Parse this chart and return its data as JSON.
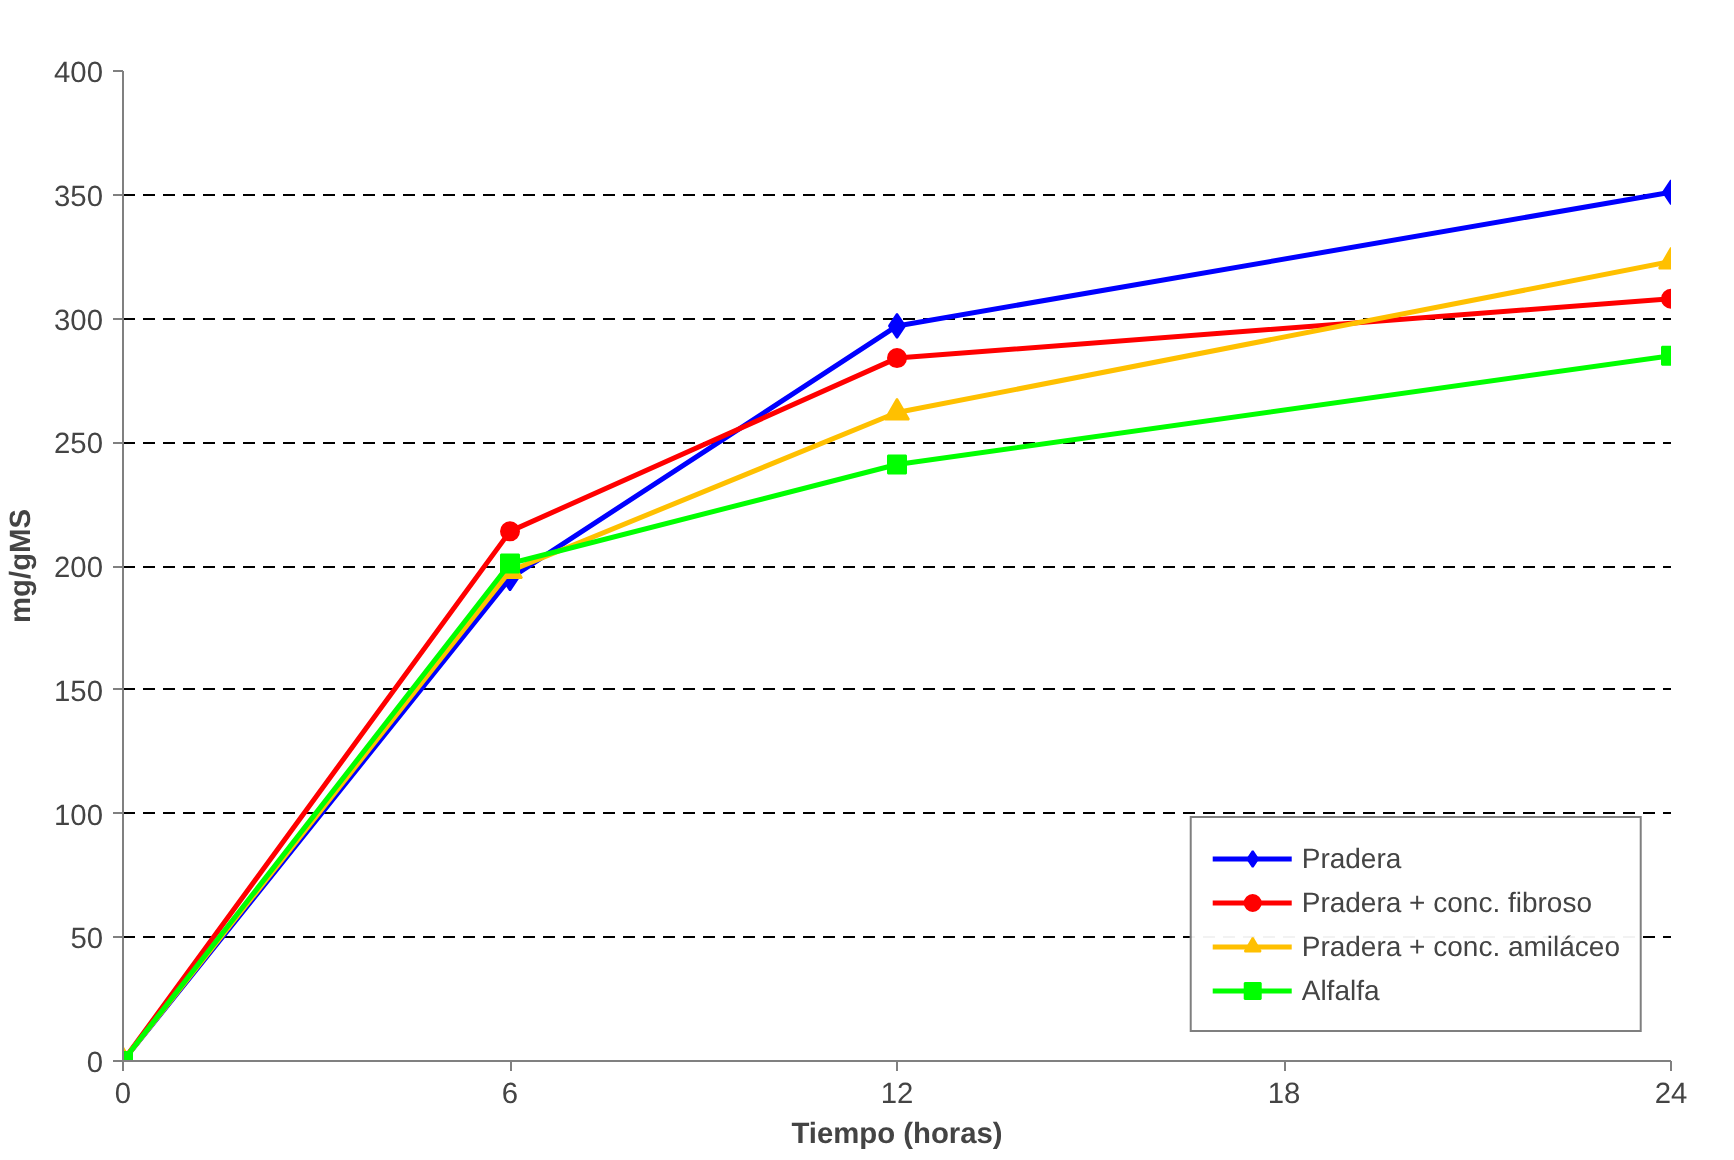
{
  "chart_data": {
    "type": "line",
    "xlabel": "Tiempo (horas)",
    "ylabel": "mg/gMS",
    "x": [
      0,
      6,
      12,
      24
    ],
    "xlim": [
      0,
      24
    ],
    "xticks": [
      0,
      6,
      12,
      18,
      24
    ],
    "ylim": [
      0,
      400
    ],
    "yticks": [
      0,
      50,
      100,
      150,
      200,
      250,
      300,
      350,
      400
    ],
    "grid": "y",
    "legend": "bottom right",
    "line_style": "solid",
    "series": [
      {
        "name": "Pradera",
        "color": "#0000ff",
        "marker": "diamond",
        "values": [
          0,
          195,
          297,
          351
        ]
      },
      {
        "name": "Pradera + conc. fibroso",
        "color": "#ff0000",
        "marker": "circle",
        "values": [
          0,
          214,
          284,
          308
        ]
      },
      {
        "name": "Pradera + conc. amiláceo",
        "color": "#ffc000",
        "marker": "triangle",
        "values": [
          0,
          198,
          262,
          323
        ]
      },
      {
        "name": "Alfalfa",
        "color": "#00ff00",
        "marker": "square",
        "values": [
          0,
          201,
          241,
          285
        ]
      }
    ]
  }
}
